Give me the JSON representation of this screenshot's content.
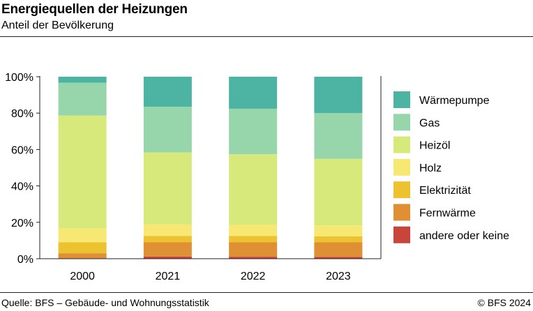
{
  "header": {
    "title": "Energiequellen der Heizungen",
    "subtitle": "Anteil der Bevölkerung"
  },
  "footer": {
    "source": "Quelle: BFS – Gebäude- und Wohnungsstatistik",
    "copyright": "© BFS 2024"
  },
  "chart_data": {
    "type": "bar",
    "stacked": true,
    "title": "Energiequellen der Heizungen",
    "subtitle": "Anteil der Bevölkerung",
    "categories": [
      "2000",
      "2021",
      "2022",
      "2023"
    ],
    "ylim": [
      0,
      100
    ],
    "yticks": [
      0,
      20,
      40,
      60,
      80,
      100
    ],
    "ytick_labels": [
      "0%",
      "20%",
      "40%",
      "60%",
      "80%",
      "100%"
    ],
    "grid": false,
    "legend_position": "right",
    "series": [
      {
        "name": "andere oder keine",
        "color": "#c9453b",
        "values": [
          0.3,
          1.2,
          1.1,
          1.0
        ]
      },
      {
        "name": "Fernwärme",
        "color": "#df8f34",
        "values": [
          2.7,
          7.8,
          7.9,
          8.0
        ]
      },
      {
        "name": "Elektrizität",
        "color": "#ecc230",
        "values": [
          6.0,
          3.5,
          3.5,
          3.3
        ]
      },
      {
        "name": "Holz",
        "color": "#f7e873",
        "values": [
          7.7,
          6.3,
          6.1,
          6.0
        ]
      },
      {
        "name": "Heizöl",
        "color": "#d7e97a",
        "values": [
          62.0,
          39.6,
          38.8,
          36.6
        ]
      },
      {
        "name": "Gas",
        "color": "#97d5aa",
        "values": [
          18.0,
          25.1,
          25.0,
          25.1
        ]
      },
      {
        "name": "Wärmepumpe",
        "color": "#4db3a2",
        "values": [
          3.3,
          16.5,
          17.6,
          20.0
        ]
      }
    ],
    "legend_order": [
      "Wärmepumpe",
      "Gas",
      "Heizöl",
      "Holz",
      "Elektrizität",
      "Fernwärme",
      "andere oder keine"
    ]
  }
}
